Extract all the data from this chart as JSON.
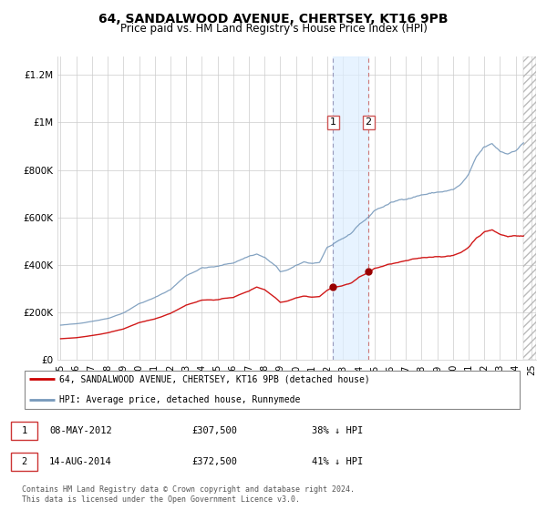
{
  "title": "64, SANDALWOOD AVENUE, CHERTSEY, KT16 9PB",
  "subtitle": "Price paid vs. HM Land Registry's House Price Index (HPI)",
  "title_fontsize": 10,
  "subtitle_fontsize": 8.5,
  "ylabel_ticks": [
    "£0",
    "£200K",
    "£400K",
    "£600K",
    "£800K",
    "£1M",
    "£1.2M"
  ],
  "ytick_vals": [
    0,
    200000,
    400000,
    600000,
    800000,
    1000000,
    1200000
  ],
  "ylim": [
    0,
    1280000
  ],
  "xlim_start": 1994.8,
  "xlim_end": 2025.3,
  "red_color": "#cc0000",
  "blue_color": "#7799bb",
  "point1_x": 2012.36,
  "point1_y": 307500,
  "point2_x": 2014.62,
  "point2_y": 372500,
  "shade_x1": 2012.36,
  "shade_x2": 2014.62,
  "vline1_color": "#aaaacc",
  "vline2_color": "#cc8888",
  "transactions": [
    {
      "num": "1",
      "date": "08-MAY-2012",
      "price": "£307,500",
      "pct": "38% ↓ HPI"
    },
    {
      "num": "2",
      "date": "14-AUG-2014",
      "price": "£372,500",
      "pct": "41% ↓ HPI"
    }
  ],
  "legend_line1": "64, SANDALWOOD AVENUE, CHERTSEY, KT16 9PB (detached house)",
  "legend_line2": "HPI: Average price, detached house, Runnymede",
  "footer": "Contains HM Land Registry data © Crown copyright and database right 2024.\nThis data is licensed under the Open Government Licence v3.0."
}
